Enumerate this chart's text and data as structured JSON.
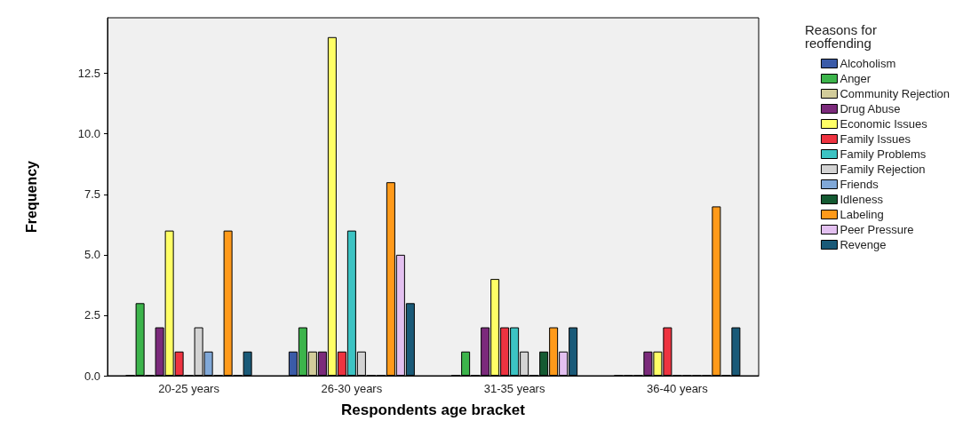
{
  "chart_data": {
    "type": "bar",
    "xlabel": "Respondents age bracket",
    "ylabel": "Frequency",
    "legend_title": "Reasons for reoffending",
    "categories": [
      "20-25 years",
      "26-30 years",
      "31-35 years",
      "36-40 years"
    ],
    "ylim": [
      0,
      14.8
    ],
    "yticks": [
      {
        "value": 0,
        "label": "0.0"
      },
      {
        "value": 2.5,
        "label": "2.5"
      },
      {
        "value": 5,
        "label": "5.0"
      },
      {
        "value": 7.5,
        "label": "7.5"
      },
      {
        "value": 10,
        "label": "10.0"
      },
      {
        "value": 12.5,
        "label": "12.5"
      }
    ],
    "grid": false,
    "legend": "right",
    "series": [
      {
        "name": "Alcoholism",
        "color": "#3b5ba8",
        "values": [
          0,
          1,
          0,
          0
        ]
      },
      {
        "name": "Anger",
        "color": "#3cb44b",
        "values": [
          3,
          2,
          1,
          0
        ]
      },
      {
        "name": "Community Rejection",
        "color": "#d2cc9a",
        "values": [
          0,
          1,
          0,
          0
        ]
      },
      {
        "name": "Drug Abuse",
        "color": "#7b2a7b",
        "values": [
          2,
          1,
          2,
          1
        ]
      },
      {
        "name": "Economic Issues",
        "color": "#ffff66",
        "values": [
          6,
          14,
          4,
          1
        ]
      },
      {
        "name": "Family Issues",
        "color": "#ee3340",
        "values": [
          1,
          1,
          2,
          2
        ]
      },
      {
        "name": "Family Problems",
        "color": "#3cc3c3",
        "values": [
          0,
          6,
          2,
          0
        ]
      },
      {
        "name": "Family Rejection",
        "color": "#d3d3d3",
        "values": [
          2,
          1,
          1,
          0
        ]
      },
      {
        "name": "Friends",
        "color": "#80a8d8",
        "values": [
          1,
          0,
          0,
          0
        ]
      },
      {
        "name": "Idleness",
        "color": "#145a32",
        "values": [
          0,
          0,
          1,
          0
        ]
      },
      {
        "name": "Labeling",
        "color": "#ff9a1a",
        "values": [
          6,
          8,
          2,
          7
        ]
      },
      {
        "name": "Peer Pressure",
        "color": "#e3c0f0",
        "values": [
          0,
          5,
          1,
          0
        ]
      },
      {
        "name": "Revenge",
        "color": "#1a5a78",
        "values": [
          1,
          3,
          2,
          2
        ]
      }
    ]
  }
}
